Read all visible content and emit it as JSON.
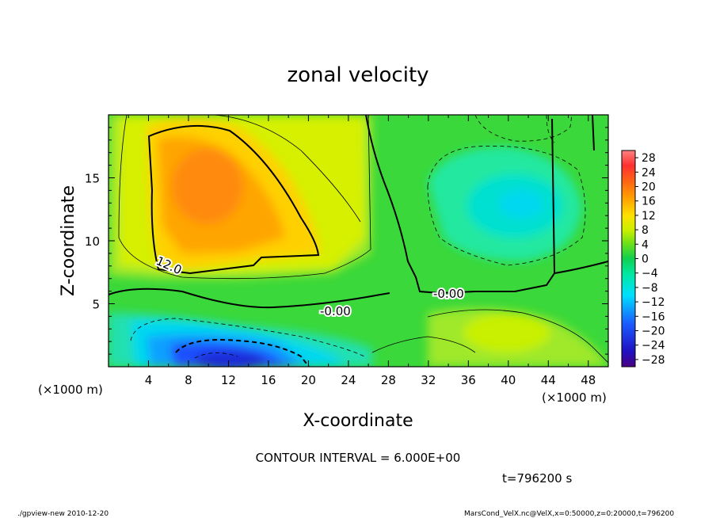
{
  "chart_data": {
    "type": "heatmap",
    "title": "zonal velocity",
    "xlabel": "X-coordinate",
    "ylabel": "Z-coordinate",
    "x_unit_label": "(×1000 m)",
    "x_unit_label_secondary": "(×1000 m)",
    "xlim": [
      0,
      50
    ],
    "ylim": [
      0,
      20
    ],
    "x_ticks": [
      "4",
      "8",
      "12",
      "16",
      "20",
      "24",
      "28",
      "32",
      "36",
      "40",
      "44",
      "48"
    ],
    "y_ticks": [
      "5",
      "10",
      "15"
    ],
    "colorbar": {
      "range": [
        -30,
        30
      ],
      "labels": [
        "28",
        "24",
        "20",
        "16",
        "12",
        "8",
        "4",
        "0",
        "−4",
        "−8",
        "−12",
        "−16",
        "−20",
        "−24",
        "−28"
      ]
    },
    "contour_labels": [
      "12.0",
      "-0.00",
      "-0.00"
    ],
    "contour_interval_text": "CONTOUR INTERVAL = 6.000E+00",
    "time_text": "t=796200 s",
    "features": [
      {
        "name": "positive max",
        "x": 11,
        "z": 14,
        "value": 19
      },
      {
        "name": "negative min",
        "x": 12,
        "z": 1,
        "value": -22
      },
      {
        "name": "negative upper right",
        "x": 41,
        "z": 12,
        "value": -11
      },
      {
        "name": "positive lower right",
        "x": 40,
        "z": 3,
        "value": 7
      }
    ]
  },
  "footer": {
    "left": "./gpview-new  2010-12-20",
    "right": "MarsCond_VelX.nc@VelX,x=0:50000,z=0:20000,t=796200"
  }
}
